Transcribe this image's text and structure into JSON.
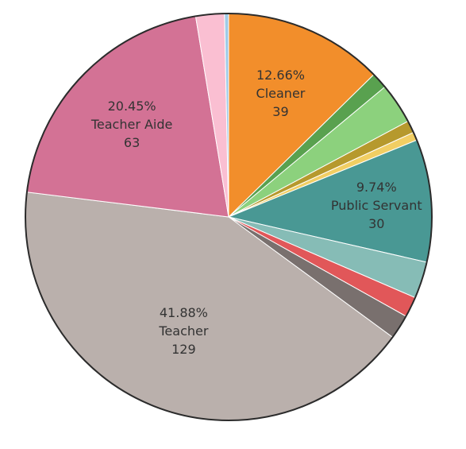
{
  "chart_data": {
    "type": "pie",
    "slices": [
      {
        "category": "Cleaner",
        "value": 39,
        "percent_text": "12.66%",
        "value_text": "39",
        "color": "#f28e2b",
        "show_label": true
      },
      {
        "category": "",
        "value": 4,
        "color": "#59a14f",
        "show_label": false
      },
      {
        "category": "",
        "value": 10,
        "color": "#8cd17d",
        "show_label": false
      },
      {
        "category": "",
        "value": 3,
        "color": "#b6992d",
        "show_label": false
      },
      {
        "category": "",
        "value": 2,
        "color": "#f1ce63",
        "show_label": false
      },
      {
        "category": "Public Servant",
        "value": 30,
        "percent_text": "9.74%",
        "value_text": "30",
        "color": "#499894",
        "show_label": true
      },
      {
        "category": "",
        "value": 9,
        "color": "#86bcb6",
        "show_label": false
      },
      {
        "category": "",
        "value": 5,
        "color": "#e15759",
        "show_label": false
      },
      {
        "category": "",
        "value": 6,
        "color": "#79706e",
        "show_label": false
      },
      {
        "category": "Teacher",
        "value": 129,
        "percent_text": "41.88%",
        "value_text": "129",
        "color": "#bab0ac",
        "show_label": true
      },
      {
        "category": "Teacher Aide",
        "value": 63,
        "percent_text": "20.45%",
        "value_text": "63",
        "color": "#d37295",
        "show_label": true
      },
      {
        "category": "",
        "value": 7,
        "color": "#fabfd2",
        "show_label": false
      },
      {
        "category": "",
        "value": 1,
        "color": "#a0cbe8",
        "show_label": false
      }
    ],
    "start_angle": "12 o'clock",
    "direction": "clockwise",
    "slice_border": "#2b2b2b",
    "legend": "none"
  }
}
